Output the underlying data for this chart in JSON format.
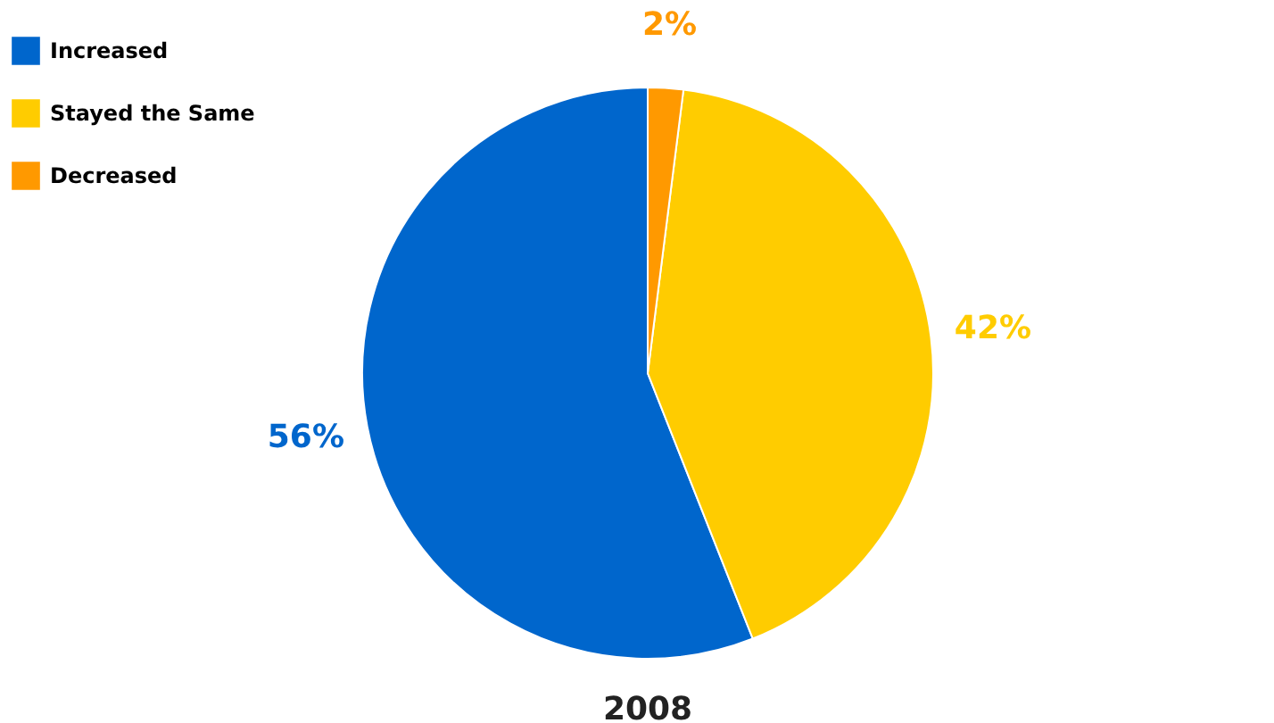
{
  "chart_data": {
    "type": "pie",
    "title": "2008",
    "categories": [
      "Increased",
      "Stayed the Same",
      "Decreased"
    ],
    "values": [
      56,
      42,
      2
    ],
    "colors": [
      "#0066cc",
      "#ffcc00",
      "#ff9900"
    ],
    "value_labels": [
      "56%",
      "42%",
      "2%"
    ],
    "legend": "left"
  }
}
